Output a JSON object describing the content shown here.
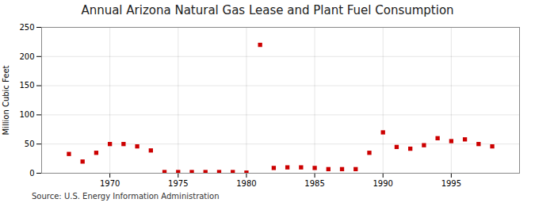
{
  "chart_data": {
    "type": "scatter",
    "title": "Annual Arizona Natural Gas Lease and Plant Fuel Consumption",
    "ylabel": "Million Cubic Feet",
    "source": "Source: U.S. Energy Information Administration",
    "x": [
      1967,
      1968,
      1969,
      1970,
      1971,
      1972,
      1973,
      1974,
      1975,
      1976,
      1977,
      1978,
      1979,
      1980,
      1981,
      1982,
      1983,
      1984,
      1985,
      1986,
      1987,
      1988,
      1989,
      1990,
      1991,
      1992,
      1993,
      1994,
      1995,
      1996,
      1997,
      1998
    ],
    "values": [
      33,
      20,
      35,
      50,
      50,
      46,
      39,
      2,
      2,
      2,
      2,
      2,
      2,
      1,
      220,
      9,
      10,
      10,
      9,
      7,
      7,
      7,
      35,
      70,
      45,
      42,
      48,
      60,
      55,
      58,
      50,
      46
    ],
    "color": "#cc0000",
    "marker": "square",
    "xlim": [
      1965,
      2000
    ],
    "ylim": [
      0,
      250
    ],
    "xticks": [
      1970,
      1975,
      1980,
      1985,
      1990,
      1995
    ],
    "yticks": [
      0,
      50,
      100,
      150,
      200,
      250
    ],
    "grid": true
  }
}
